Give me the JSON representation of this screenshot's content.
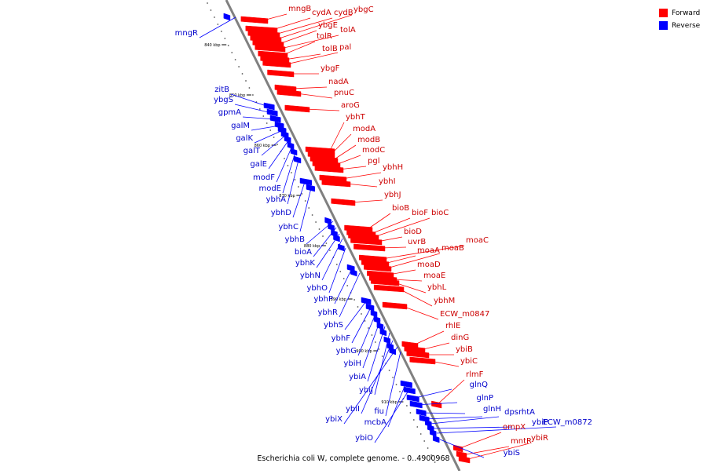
{
  "caption": "Escherichia coli W, complete genome. - 0..4900968",
  "legend": [
    {
      "label": "Forward",
      "color": "#ff0000"
    },
    {
      "label": "Reverse",
      "color": "#0000ff"
    }
  ],
  "colors": {
    "forward": "#ff0000",
    "reverse": "#0000ff",
    "backbone": "#808080"
  },
  "ticks": [
    "840 kbp",
    "850 kbp",
    "860 kbp",
    "870 kbp",
    "880 kbp",
    "890 kbp",
    "900 kbp",
    "910 kbp"
  ],
  "forward_genes": [
    "mngB",
    "cydA",
    "cydB",
    "ybgC",
    "ybgE",
    "tolA",
    "tolR",
    "tolB",
    "pal",
    "ybgF",
    "nadA",
    "pnuC",
    "aroG",
    "ybhT",
    "modA",
    "modB",
    "modC",
    "pgl",
    "ybhH",
    "ybhI",
    "ybhJ",
    "bioB",
    "bioF",
    "bioC",
    "bioD",
    "uvrB",
    "moaC",
    "moaA",
    "moaB",
    "moaD",
    "moaE",
    "ybhL",
    "ybhM",
    "ECW_m0847",
    "rhlE",
    "dinG",
    "ybiB",
    "ybiC",
    "rlmF",
    "ompX",
    "mntR",
    "ybiR"
  ],
  "reverse_genes": [
    "mngR",
    "zitB",
    "ybgS",
    "gpmA",
    "galM",
    "galK",
    "galT",
    "galE",
    "modF",
    "modE",
    "ybhA",
    "ybhD",
    "ybhC",
    "ybhB",
    "bioA",
    "ybhK",
    "ybhN",
    "ybhO",
    "ybhP",
    "ybhR",
    "ybhS",
    "ybhF",
    "ybhG",
    "ybiH",
    "ybiA",
    "ybiJ",
    "ybiI",
    "ybiX",
    "fiu",
    "mcbA",
    "ybiO",
    "glnQ",
    "glnP",
    "glnH",
    "dps",
    "rhtA",
    "ybiP",
    "ECW_m0872",
    "ybiS"
  ]
}
